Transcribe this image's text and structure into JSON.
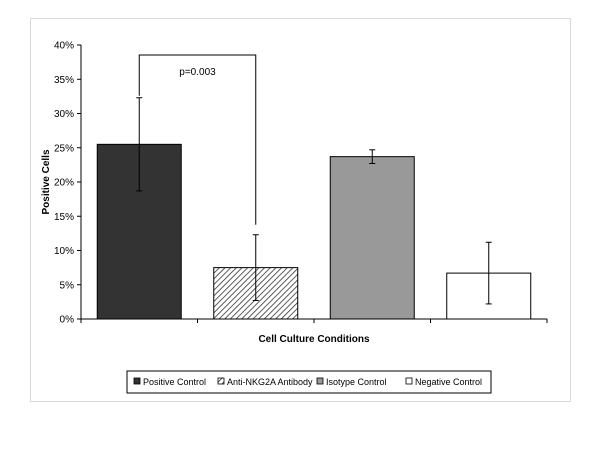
{
  "chart_data": {
    "type": "bar",
    "title": "",
    "xlabel": "Cell Culture Conditions",
    "ylabel": "Positive Cells",
    "ylim": [
      0,
      40
    ],
    "y_ticks": [
      "0%",
      "5%",
      "10%",
      "15%",
      "20%",
      "25%",
      "30%",
      "35%",
      "40%"
    ],
    "y_tick_values": [
      0,
      5,
      10,
      15,
      20,
      25,
      30,
      35,
      40
    ],
    "grid": false,
    "legend_position": "bottom",
    "categories": [
      "Positive Control",
      "Anti-NKG2A Antibody",
      "Isotype Control",
      "Negative Control"
    ],
    "series": [
      {
        "values": [
          25.5,
          7.5,
          23.7,
          6.7
        ],
        "error_minus": [
          6.8,
          4.8,
          1.0,
          4.5
        ],
        "error_plus": [
          6.8,
          4.8,
          1.0,
          4.5
        ],
        "fills": [
          "#333333",
          "hatch",
          "#999999",
          "#ffffff"
        ]
      }
    ],
    "annotations": [
      {
        "text": "p=0.003",
        "bracket_between": [
          "Positive Control",
          "Anti-NKG2A Antibody"
        ]
      }
    ]
  }
}
